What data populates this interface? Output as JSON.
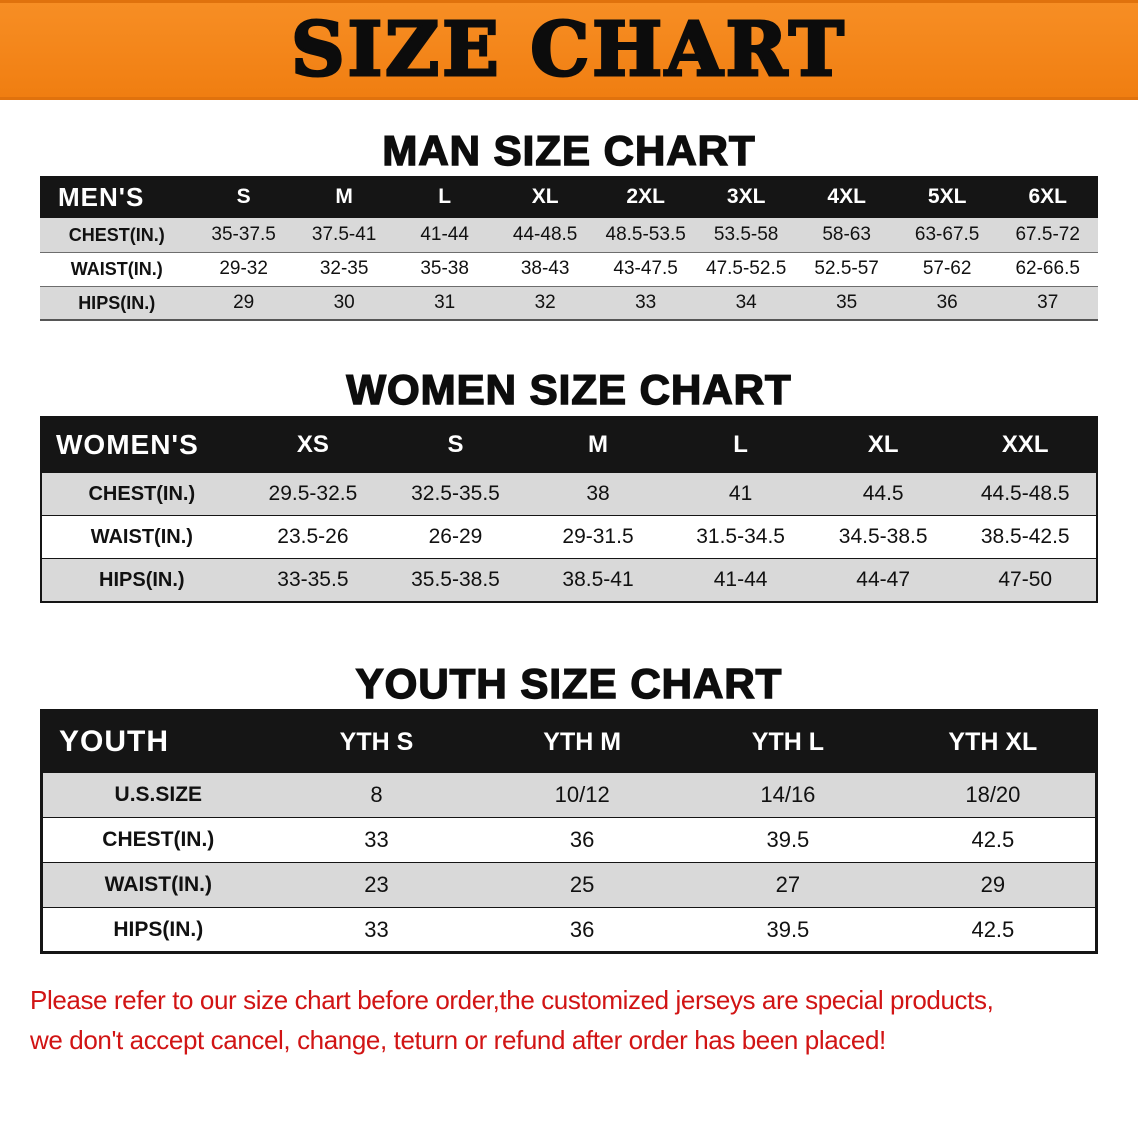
{
  "banner": {
    "title": "SIZE CHART",
    "bg_color": "#f6851d"
  },
  "man": {
    "heading": "MAN SIZE CHART",
    "corner": "MEN'S",
    "sizes": [
      "S",
      "M",
      "L",
      "XL",
      "2XL",
      "3XL",
      "4XL",
      "5XL",
      "6XL"
    ],
    "rows": [
      {
        "label": "CHEST(IN.)",
        "values": [
          "35-37.5",
          "37.5-41",
          "41-44",
          "44-48.5",
          "48.5-53.5",
          "53.5-58",
          "58-63",
          "63-67.5",
          "67.5-72"
        ]
      },
      {
        "label": "WAIST(IN.)",
        "values": [
          "29-32",
          "32-35",
          "35-38",
          "38-43",
          "43-47.5",
          "47.5-52.5",
          "52.5-57",
          "57-62",
          "62-66.5"
        ]
      },
      {
        "label": "HIPS(IN.)",
        "values": [
          "29",
          "30",
          "31",
          "32",
          "33",
          "34",
          "35",
          "36",
          "37"
        ]
      }
    ]
  },
  "women": {
    "heading": "WOMEN SIZE CHART",
    "corner": "WOMEN'S",
    "sizes": [
      "XS",
      "S",
      "M",
      "L",
      "XL",
      "XXL"
    ],
    "rows": [
      {
        "label": "CHEST(IN.)",
        "values": [
          "29.5-32.5",
          "32.5-35.5",
          "38",
          "41",
          "44.5",
          "44.5-48.5"
        ]
      },
      {
        "label": "WAIST(IN.)",
        "values": [
          "23.5-26",
          "26-29",
          "29-31.5",
          "31.5-34.5",
          "34.5-38.5",
          "38.5-42.5"
        ]
      },
      {
        "label": "HIPS(IN.)",
        "values": [
          "33-35.5",
          "35.5-38.5",
          "38.5-41",
          "41-44",
          "44-47",
          "47-50"
        ]
      }
    ]
  },
  "youth": {
    "heading": "YOUTH SIZE CHART",
    "corner": "YOUTH",
    "sizes": [
      "YTH S",
      "YTH M",
      "YTH L",
      "YTH XL"
    ],
    "rows": [
      {
        "label": "U.S.SIZE",
        "values": [
          "8",
          "10/12",
          "14/16",
          "18/20"
        ]
      },
      {
        "label": "CHEST(IN.)",
        "values": [
          "33",
          "36",
          "39.5",
          "42.5"
        ]
      },
      {
        "label": "WAIST(IN.)",
        "values": [
          "23",
          "25",
          "27",
          "29"
        ]
      },
      {
        "label": "HIPS(IN.)",
        "values": [
          "33",
          "36",
          "39.5",
          "42.5"
        ]
      }
    ]
  },
  "notice": {
    "line1": "Please refer to our size chart before order,the customized jerseys are special products,",
    "line2": "we don't accept cancel, change, teturn or refund after order has been placed!",
    "color": "#d11414"
  }
}
